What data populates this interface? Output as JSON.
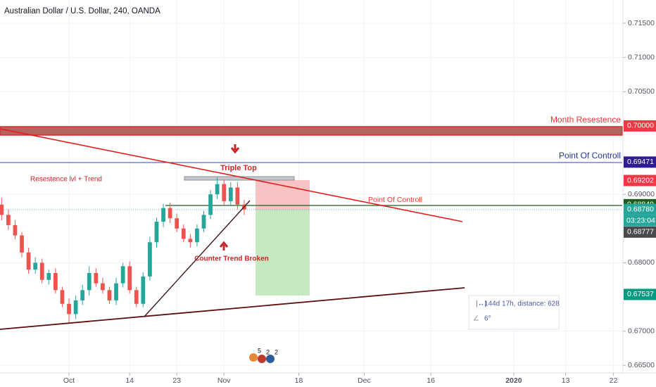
{
  "chart_data": {
    "type": "candlestick",
    "title": "Australian Dollar / U.S. Dollar, 240, OANDA",
    "x": [
      -10,
      -9,
      -8,
      -7,
      -6,
      -5,
      -4,
      -3,
      -2,
      -1,
      0,
      1,
      2,
      3,
      4,
      5,
      6,
      7,
      8,
      9,
      10,
      11,
      12,
      13,
      14,
      15,
      16,
      17,
      18,
      19,
      20,
      21,
      22,
      23,
      24,
      25,
      26
    ],
    "open": [
      0.6885,
      0.687,
      0.6855,
      0.684,
      0.6815,
      0.679,
      0.68,
      0.6775,
      0.6785,
      0.676,
      0.674,
      0.6725,
      0.6745,
      0.676,
      0.6785,
      0.677,
      0.676,
      0.6745,
      0.677,
      0.6795,
      0.676,
      0.674,
      0.678,
      0.683,
      0.686,
      0.688,
      0.6865,
      0.685,
      0.6835,
      0.683,
      0.685,
      0.687,
      0.69,
      0.6915,
      0.689,
      0.691,
      0.6885
    ],
    "high": [
      0.6895,
      0.6878,
      0.6862,
      0.6845,
      0.6822,
      0.6808,
      0.6806,
      0.679,
      0.6792,
      0.6765,
      0.6748,
      0.6752,
      0.6768,
      0.6795,
      0.6792,
      0.6778,
      0.6765,
      0.6778,
      0.68,
      0.6802,
      0.6765,
      0.6786,
      0.6838,
      0.6866,
      0.6886,
      0.6888,
      0.6872,
      0.6856,
      0.6842,
      0.6856,
      0.6876,
      0.6906,
      0.6925,
      0.6922,
      0.6918,
      0.6918,
      0.6892
    ],
    "low": [
      0.6862,
      0.6848,
      0.6834,
      0.6808,
      0.6784,
      0.6784,
      0.677,
      0.6768,
      0.6755,
      0.6735,
      0.6712,
      0.6718,
      0.6738,
      0.6752,
      0.6765,
      0.6755,
      0.674,
      0.6738,
      0.6764,
      0.6755,
      0.6735,
      0.6735,
      0.6774,
      0.6822,
      0.6852,
      0.6858,
      0.6845,
      0.683,
      0.6822,
      0.6824,
      0.6845,
      0.6864,
      0.6893,
      0.6884,
      0.6884,
      0.6878,
      0.687
    ],
    "close": [
      0.687,
      0.6855,
      0.684,
      0.6815,
      0.679,
      0.68,
      0.6775,
      0.6785,
      0.676,
      0.674,
      0.6725,
      0.6745,
      0.676,
      0.6785,
      0.677,
      0.676,
      0.6745,
      0.677,
      0.6795,
      0.676,
      0.674,
      0.678,
      0.683,
      0.686,
      0.688,
      0.6865,
      0.685,
      0.6835,
      0.683,
      0.685,
      0.687,
      0.69,
      0.6915,
      0.689,
      0.691,
      0.6885,
      0.6878
    ],
    "up_color": "#26a69a",
    "down_color": "#ef5350",
    "xlim": [
      -10.24,
      82.2
    ],
    "ylim": [
      0.6639,
      0.7184
    ],
    "xticks": [
      {
        "value": 0,
        "label": "Oct"
      },
      {
        "value": 9,
        "label": "14"
      },
      {
        "value": 16,
        "label": "23"
      },
      {
        "value": 23,
        "label": "Nov"
      },
      {
        "value": 34.1,
        "label": "18"
      },
      {
        "value": 43.8,
        "label": "Dec"
      },
      {
        "value": 53.7,
        "label": "16"
      },
      {
        "value": 66,
        "label": "2020"
      },
      {
        "value": 73.7,
        "label": "13"
      },
      {
        "value": 80.8,
        "label": "22"
      }
    ],
    "yticks": [
      {
        "value": 0.715,
        "label": "0.71500"
      },
      {
        "value": 0.71,
        "label": "0.71000"
      },
      {
        "value": 0.705,
        "label": "0.70500"
      },
      {
        "value": 0.69,
        "label": "0.69000"
      },
      {
        "value": 0.68,
        "label": "0.68000"
      },
      {
        "value": 0.67,
        "label": "0.67000"
      },
      {
        "value": 0.665,
        "label": "0.66500"
      }
    ],
    "price_markers": [
      {
        "value": 0.7,
        "label": "0.70000",
        "color": "#f23645"
      },
      {
        "value": 0.69471,
        "label": "0.69471",
        "color": "#311b92"
      },
      {
        "value": 0.69202,
        "label": "0.69202",
        "color": "#f23645"
      },
      {
        "value": 0.68849,
        "label": "0.68849",
        "color": "#1b5e20"
      },
      {
        "value": 0.6878,
        "label": "0.68780",
        "color": "#26a69a"
      },
      {
        "value": 0.68777,
        "label": "0.68777",
        "color": "#4a4a4a"
      },
      {
        "value": 0.67537,
        "label": "0.67537",
        "color": "#089981"
      }
    ],
    "countdown": "03:23:04",
    "annotations": {
      "month_resistance": "Month Resestence",
      "point_of_control_right": "Point Of Controll",
      "triple_top": "Triple Top",
      "resistance_trend": "Resestence lvl + Trend",
      "point_of_control_mid": "Point Of Controll",
      "counter_trend": "Counter Trend Broken",
      "measure": "144d 17h, distance: 628",
      "angle": "6°",
      "events": [
        "5",
        "2",
        "2"
      ]
    }
  }
}
